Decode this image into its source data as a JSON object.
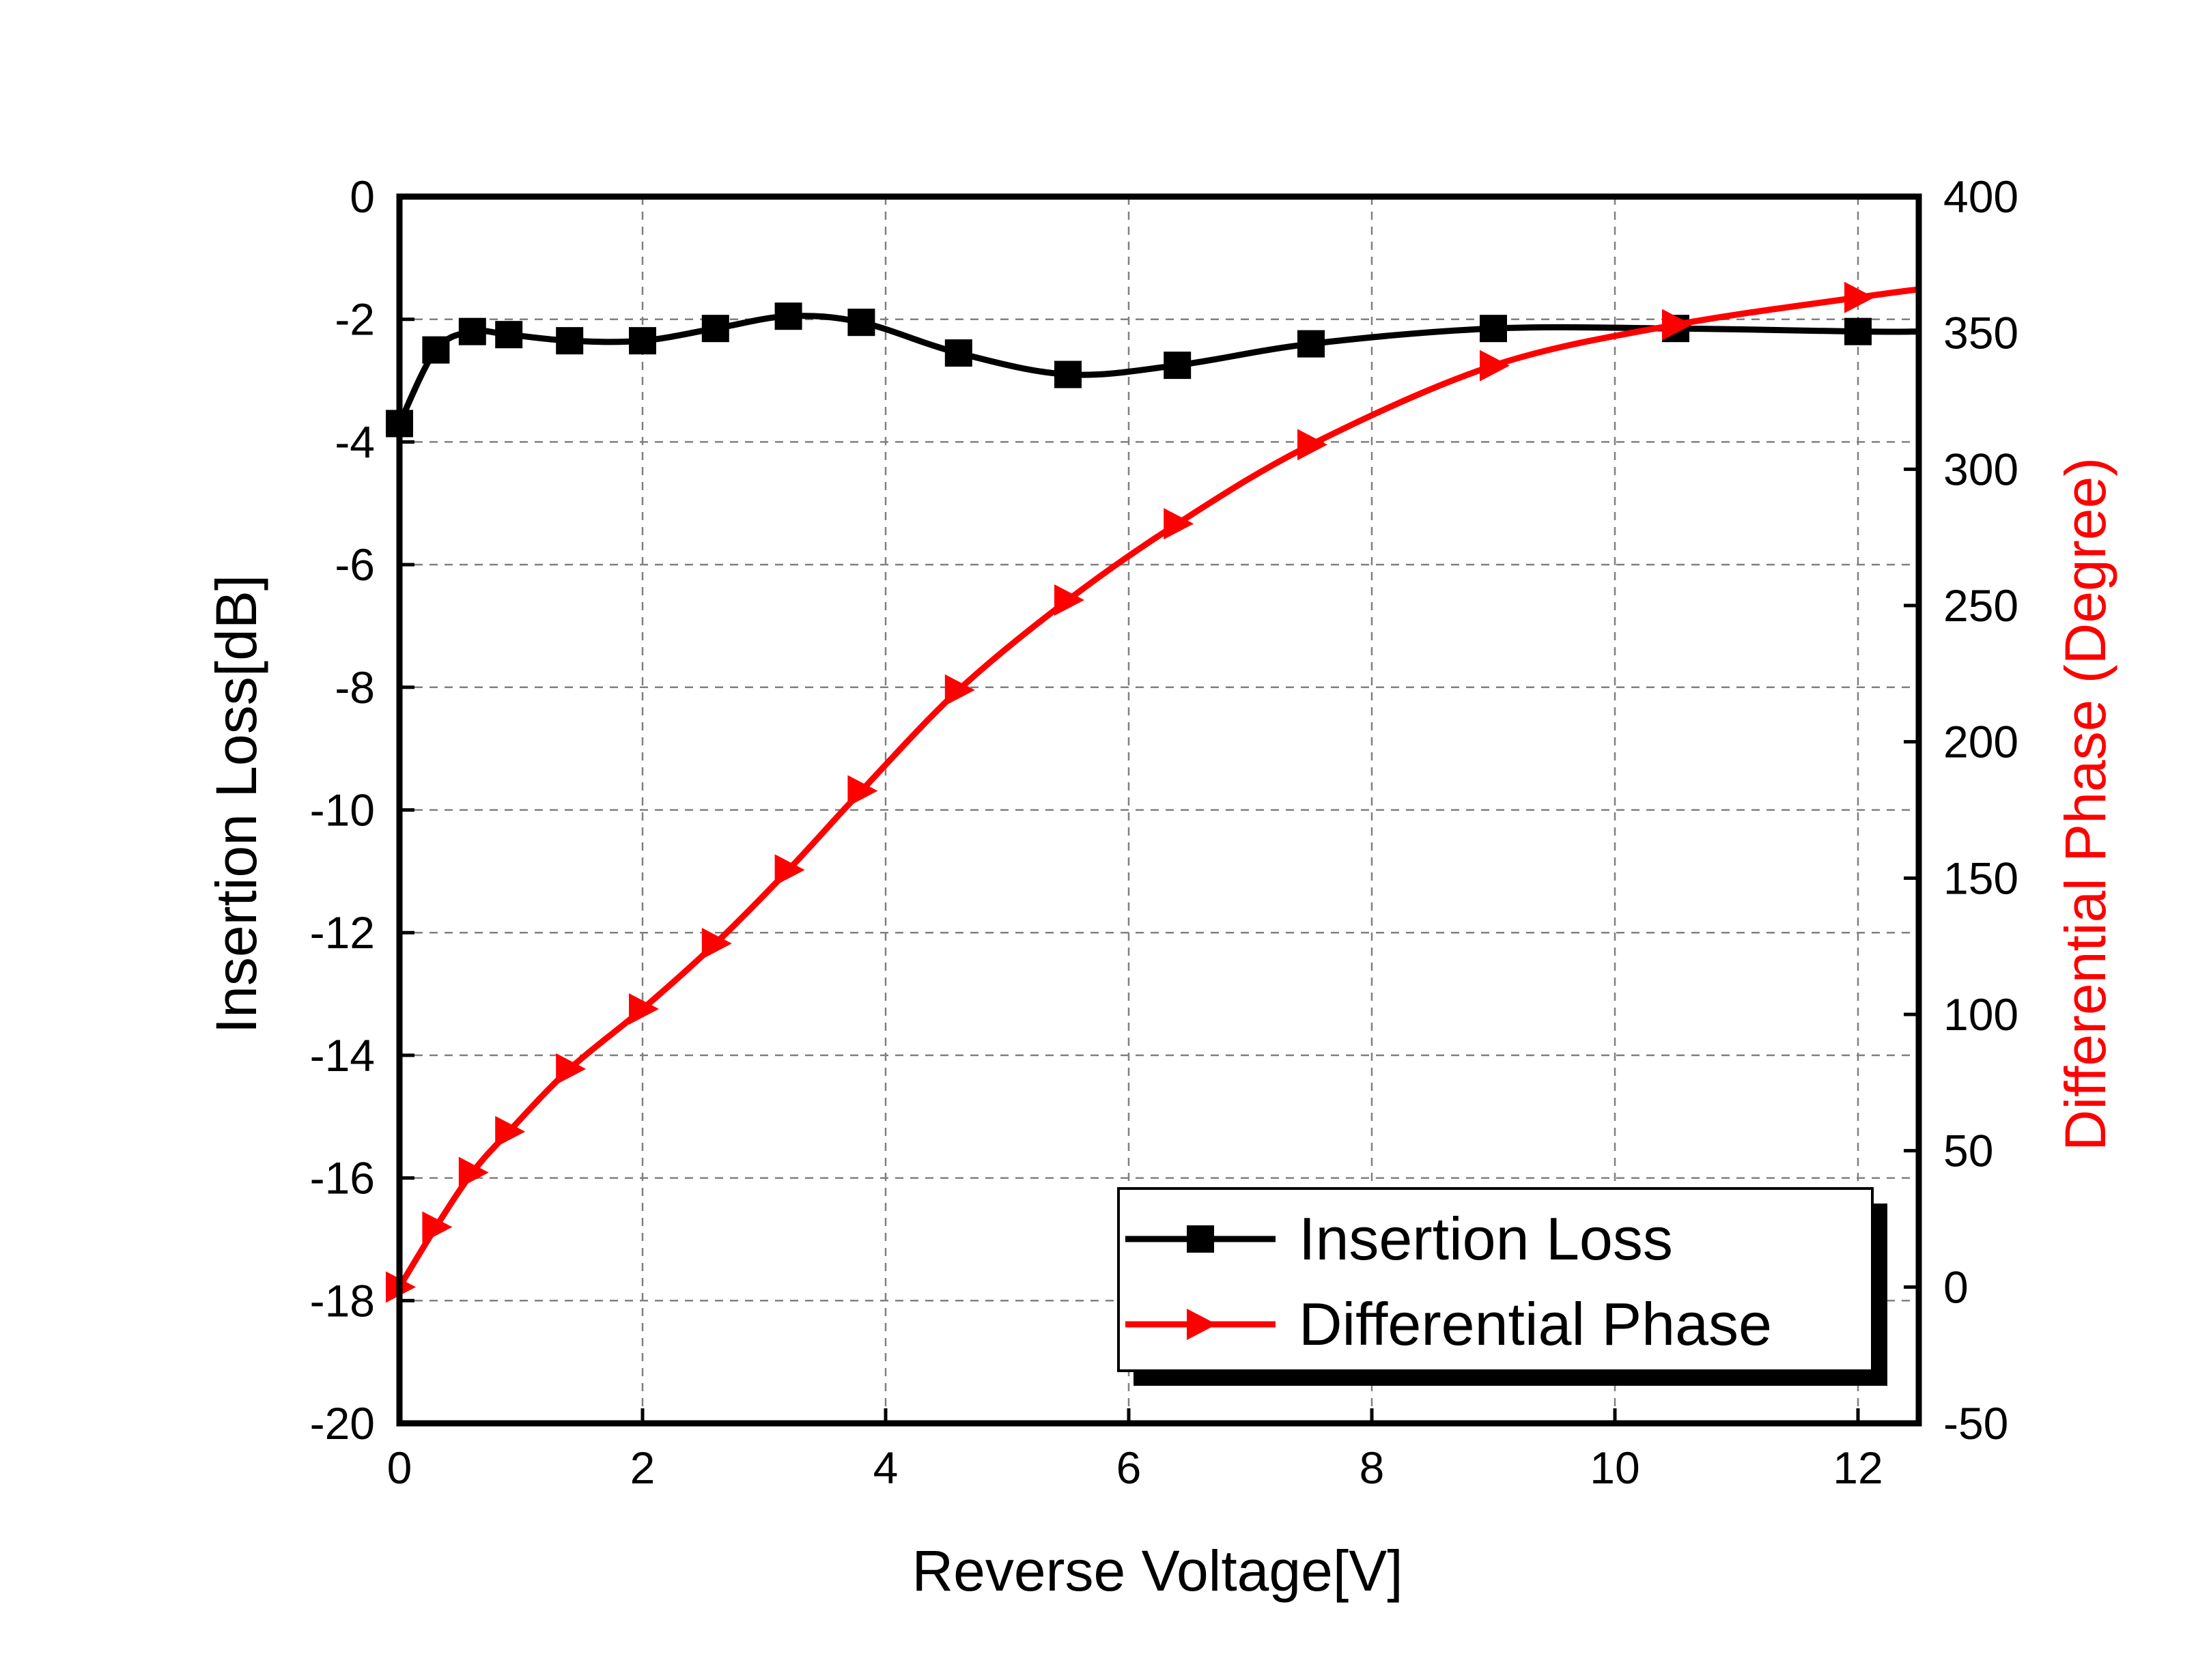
{
  "chart_data": {
    "type": "line",
    "xlabel": "Reverse Voltage[V]",
    "ylabel": "Insertion Loss[dB]",
    "y2label": "Differential Phase (Degree)",
    "xlim": [
      0,
      12.5
    ],
    "ylim": [
      -20,
      0
    ],
    "y2lim": [
      -50,
      400
    ],
    "grid": true,
    "legend_position": "bottom-right",
    "x_ticks": [
      "0",
      "2",
      "4",
      "6",
      "8",
      "10",
      "12"
    ],
    "y_ticks": [
      "0",
      "-2",
      "-4",
      "-6",
      "-8",
      "-10",
      "-12",
      "-14",
      "-16",
      "-18",
      "-20"
    ],
    "y2_ticks": [
      "400",
      "350",
      "300",
      "250",
      "200",
      "150",
      "100",
      "50",
      "0",
      "-50"
    ],
    "colors": {
      "insertion_loss": "#000000",
      "differential_phase": "#ff0000",
      "y2label": "#ff0000"
    },
    "series": [
      {
        "name": "Insertion Loss",
        "axis": "left",
        "marker": "square",
        "x": [
          0,
          0.3,
          0.6,
          0.9,
          1.4,
          2.0,
          2.6,
          3.2,
          3.8,
          4.6,
          5.5,
          6.4,
          7.5,
          9.0,
          10.5,
          12.0,
          12.5
        ],
        "y": [
          -3.7,
          -2.5,
          -2.2,
          -2.25,
          -2.35,
          -2.35,
          -2.15,
          -1.95,
          -2.05,
          -2.55,
          -2.9,
          -2.75,
          -2.4,
          -2.15,
          -2.15,
          -2.2,
          -2.2
        ]
      },
      {
        "name": "Differential Phase",
        "axis": "right",
        "marker": "triangle-right",
        "x": [
          0,
          0.3,
          0.6,
          0.9,
          1.4,
          2.0,
          2.6,
          3.2,
          3.8,
          4.6,
          5.5,
          6.4,
          7.5,
          9.0,
          10.5,
          12.0,
          12.5
        ],
        "y": [
          0,
          22,
          42,
          57,
          80,
          102,
          126,
          153,
          182,
          219,
          252,
          280,
          309,
          338,
          353,
          363,
          366
        ]
      }
    ]
  }
}
